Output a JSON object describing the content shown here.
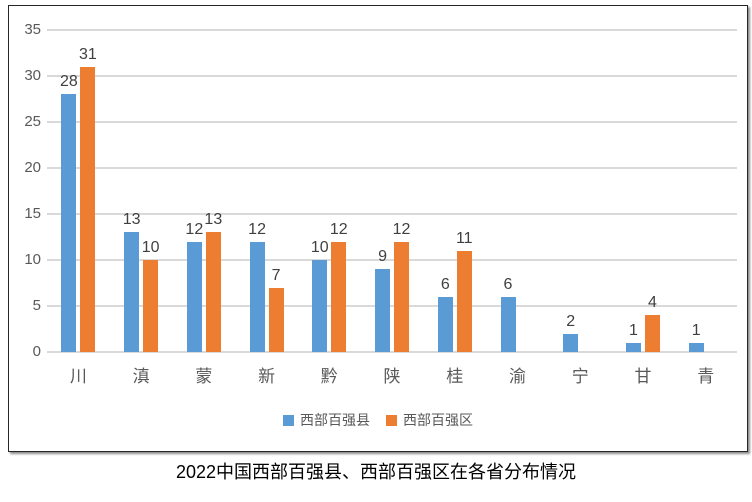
{
  "chart_data": {
    "type": "bar",
    "title": "2022中国西部百强县、西部百强区在各省分布情况",
    "categories": [
      "川",
      "滇",
      "蒙",
      "新",
      "黔",
      "陕",
      "桂",
      "渝",
      "宁",
      "甘",
      "青"
    ],
    "series": [
      {
        "name": "西部百强县",
        "color": "#5B9BD5",
        "values": [
          28,
          13,
          12,
          12,
          10,
          9,
          6,
          6,
          2,
          1,
          1
        ]
      },
      {
        "name": "西部百强区",
        "color": "#ED7D31",
        "values": [
          31,
          10,
          13,
          7,
          12,
          12,
          11,
          null,
          null,
          4,
          null
        ]
      }
    ],
    "ylim": [
      0,
      35
    ],
    "yticks": [
      0,
      5,
      10,
      15,
      20,
      25,
      30,
      35
    ],
    "grid": true,
    "data_labels": true,
    "legend_position": "bottom"
  },
  "colors": {
    "series1": "#5B9BD5",
    "series2": "#ED7D31",
    "axis_text": "#595959",
    "gridline": "#D9D9D9",
    "data_label": "#404040",
    "caption_text": "#000000",
    "chart_border": "#262626"
  }
}
